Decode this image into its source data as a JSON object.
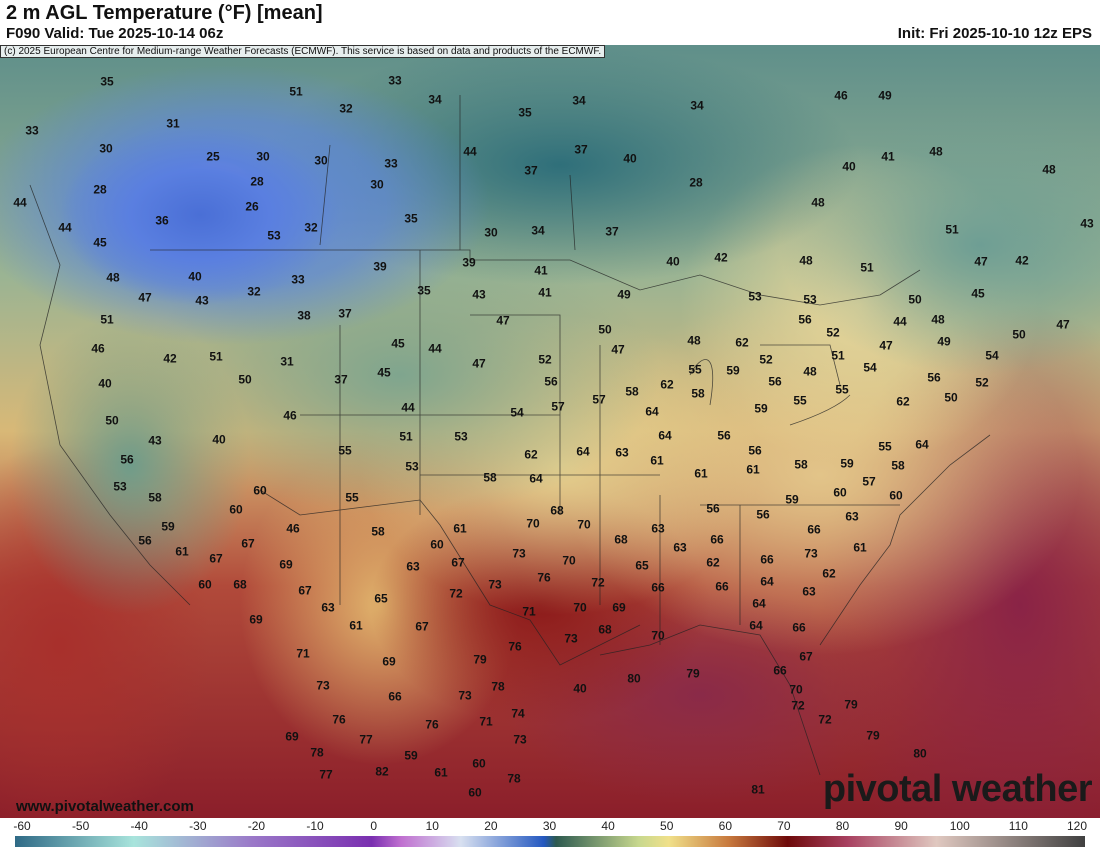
{
  "header": {
    "title": "2 m AGL Temperature (°F) [mean]",
    "valid": "F090 Valid: Tue 2025-10-14 06z",
    "init": "Init: Fri 2025-10-10 12z EPS",
    "credit": "(c) 2025 European Centre for Medium-range Weather Forecasts (ECMWF). This service is based on data and products of the ECMWF."
  },
  "footer": {
    "website": "www.pivotalweather.com",
    "logo": "pivotal weather"
  },
  "colorbar": {
    "unit": "°F",
    "min": -60,
    "max": 120,
    "ticks": [
      "-60",
      "-50",
      "-40",
      "-30",
      "-20",
      "-10",
      "0",
      "10",
      "20",
      "30",
      "40",
      "50",
      "60",
      "70",
      "80",
      "90",
      "100",
      "110",
      "120"
    ],
    "stops": [
      {
        "v": -60,
        "c": "#2f6a86"
      },
      {
        "v": -40,
        "c": "#a8e4dc"
      },
      {
        "v": -20,
        "c": "#9a78c8"
      },
      {
        "v": 0,
        "c": "#7a2fb0"
      },
      {
        "v": 5,
        "c": "#c070d0"
      },
      {
        "v": 15,
        "c": "#d8e0f0"
      },
      {
        "v": 29,
        "c": "#2458c0"
      },
      {
        "v": 31,
        "c": "#2d5a50"
      },
      {
        "v": 45,
        "c": "#c8d88e"
      },
      {
        "v": 50,
        "c": "#f0e08a"
      },
      {
        "v": 60,
        "c": "#c87a3e"
      },
      {
        "v": 70,
        "c": "#6e0a0a"
      },
      {
        "v": 80,
        "c": "#a84060"
      },
      {
        "v": 95,
        "c": "#e0c8c0"
      },
      {
        "v": 120,
        "c": "#404040"
      }
    ]
  },
  "map": {
    "temperatures": [
      "35",
      "33",
      "31",
      "30",
      "28",
      "44",
      "25",
      "30",
      "28",
      "26",
      "36",
      "44",
      "45",
      "48",
      "47",
      "40",
      "43",
      "51",
      "46",
      "42",
      "51",
      "50",
      "40",
      "50",
      "43",
      "40",
      "56",
      "53",
      "58",
      "59",
      "56",
      "61",
      "67",
      "60",
      "68",
      "67",
      "60",
      "60",
      "46",
      "69",
      "67",
      "63",
      "69",
      "71",
      "73",
      "76",
      "77",
      "69",
      "78",
      "77",
      "82",
      "61",
      "65",
      "67",
      "69",
      "66",
      "76",
      "59",
      "61",
      "60",
      "60",
      "73",
      "71",
      "79",
      "78",
      "78",
      "73",
      "74",
      "76",
      "71",
      "76",
      "73",
      "73",
      "72",
      "67",
      "60",
      "61",
      "63",
      "58",
      "55",
      "55",
      "53",
      "51",
      "44",
      "45",
      "37",
      "45",
      "44",
      "47",
      "54",
      "53",
      "58",
      "62",
      "64",
      "70",
      "68",
      "70",
      "70",
      "72",
      "70",
      "69",
      "73",
      "68",
      "70",
      "65",
      "68",
      "66",
      "63",
      "63",
      "66",
      "62",
      "66",
      "66",
      "64",
      "64",
      "64",
      "66",
      "67",
      "66",
      "70",
      "72",
      "72",
      "73",
      "62",
      "63",
      "66",
      "61",
      "63",
      "60",
      "57",
      "59",
      "55",
      "58",
      "60",
      "64",
      "62",
      "50",
      "52",
      "56",
      "50",
      "49",
      "54",
      "50",
      "47",
      "47",
      "54",
      "55",
      "48",
      "51",
      "52",
      "53",
      "53",
      "52",
      "56",
      "55",
      "59",
      "56",
      "56",
      "61",
      "58",
      "59",
      "56",
      "56",
      "61",
      "61",
      "64",
      "63",
      "64",
      "64",
      "62",
      "58",
      "57",
      "57",
      "56",
      "52",
      "47",
      "43",
      "41",
      "41",
      "39",
      "35",
      "39",
      "37",
      "38",
      "33",
      "32",
      "31",
      "46",
      "53",
      "32",
      "35",
      "30",
      "34",
      "37",
      "40",
      "42",
      "48",
      "51",
      "51",
      "47",
      "42",
      "45",
      "44",
      "48",
      "49",
      "50",
      "47",
      "48",
      "55",
      "59",
      "58",
      "62",
      "56",
      "51",
      "33",
      "32",
      "34",
      "35",
      "34",
      "34",
      "37",
      "40",
      "37",
      "44",
      "33",
      "30",
      "30",
      "28",
      "41",
      "48",
      "48",
      "40",
      "48",
      "49",
      "46",
      "43",
      "40",
      "80",
      "79",
      "79",
      "79",
      "80",
      "81",
      "82"
    ]
  }
}
